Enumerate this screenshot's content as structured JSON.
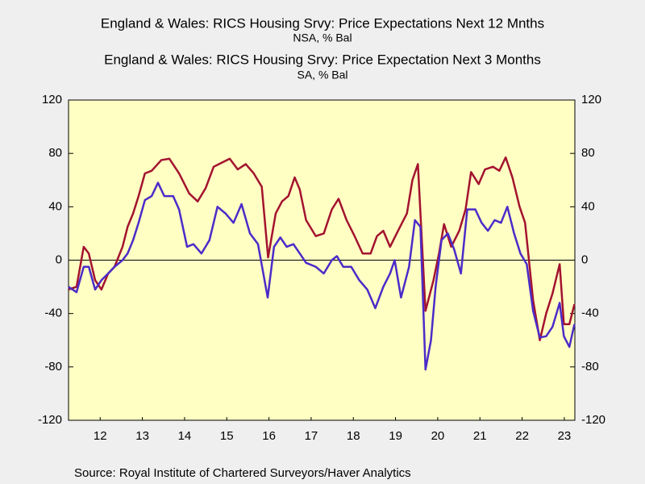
{
  "chart_data": {
    "type": "line",
    "source": "Source:  Royal Institute of Chartered Surveyors/Haver Analytics",
    "series": [
      {
        "name": "England & Wales: RICS Housing Srvy: Price Expectations Next 12 Mnths",
        "unit": "NSA, % Bal",
        "color": "#a3132f",
        "x": [
          2011.75,
          2011.94,
          2012.11,
          2012.23,
          2012.38,
          2012.53,
          2012.69,
          2012.84,
          2013.03,
          2013.15,
          2013.28,
          2013.41,
          2013.56,
          2013.72,
          2013.95,
          2014.14,
          2014.37,
          2014.61,
          2014.81,
          2015.0,
          2015.19,
          2015.38,
          2015.57,
          2015.76,
          2015.95,
          2016.14,
          2016.33,
          2016.48,
          2016.66,
          2016.81,
          2016.96,
          2017.11,
          2017.23,
          2017.38,
          2017.61,
          2017.8,
          2017.99,
          2018.15,
          2018.34,
          2018.53,
          2018.72,
          2018.91,
          2019.06,
          2019.21,
          2019.37,
          2019.56,
          2019.77,
          2019.9,
          2020.03,
          2020.21,
          2020.4,
          2020.53,
          2020.65,
          2020.82,
          2021.01,
          2021.16,
          2021.29,
          2021.47,
          2021.62,
          2021.81,
          2021.96,
          2022.11,
          2022.27,
          2022.44,
          2022.57,
          2022.76,
          2022.92,
          2023.07,
          2023.22,
          2023.39,
          2023.49,
          2023.62,
          2023.74
        ],
        "values": [
          -22,
          -20,
          10,
          5,
          -15,
          -22,
          -10,
          -5,
          10,
          25,
          35,
          48,
          65,
          67,
          75,
          76,
          65,
          50,
          44,
          54,
          70,
          73,
          76,
          68,
          72,
          65,
          55,
          2,
          35,
          44,
          48,
          62,
          53,
          30,
          18,
          20,
          38,
          46,
          30,
          18,
          5,
          5,
          18,
          22,
          10,
          22,
          35,
          60,
          72,
          -38,
          -15,
          5,
          27,
          10,
          22,
          38,
          66,
          57,
          68,
          70,
          67,
          77,
          62,
          40,
          28,
          -30,
          -60,
          -40,
          -25,
          -3,
          -48,
          -48,
          -33
        ]
      },
      {
        "name": "England & Wales: RICS Housing Srvy: Price Expectation  Next 3 Months",
        "unit": "SA, % Bal",
        "color": "#4b2bc9",
        "x": [
          2011.75,
          2011.94,
          2012.11,
          2012.23,
          2012.38,
          2012.53,
          2012.69,
          2012.84,
          2013.03,
          2013.15,
          2013.28,
          2013.41,
          2013.56,
          2013.72,
          2013.87,
          2014.02,
          2014.23,
          2014.37,
          2014.56,
          2014.71,
          2014.9,
          2015.09,
          2015.28,
          2015.47,
          2015.66,
          2015.85,
          2016.05,
          2016.24,
          2016.47,
          2016.62,
          2016.77,
          2016.92,
          2017.08,
          2017.23,
          2017.38,
          2017.61,
          2017.8,
          2017.99,
          2018.11,
          2018.26,
          2018.45,
          2018.64,
          2018.83,
          2019.02,
          2019.21,
          2019.37,
          2019.48,
          2019.63,
          2019.82,
          2019.96,
          2020.09,
          2020.21,
          2020.34,
          2020.45,
          2020.59,
          2020.74,
          2020.89,
          2021.05,
          2021.2,
          2021.39,
          2021.54,
          2021.69,
          2021.85,
          2022.0,
          2022.15,
          2022.31,
          2022.46,
          2022.61,
          2022.76,
          2022.92,
          2023.07,
          2023.22,
          2023.39,
          2023.49,
          2023.62,
          2023.74
        ],
        "values": [
          -20,
          -24,
          -5,
          -5,
          -22,
          -15,
          -10,
          -5,
          0,
          5,
          15,
          28,
          45,
          48,
          58,
          48,
          48,
          38,
          10,
          12,
          5,
          15,
          40,
          35,
          28,
          42,
          20,
          12,
          -28,
          10,
          17,
          10,
          12,
          5,
          -2,
          -5,
          -10,
          0,
          3,
          -5,
          -5,
          -15,
          -22,
          -36,
          -20,
          -10,
          0,
          -28,
          -5,
          30,
          25,
          -82,
          -60,
          -20,
          15,
          20,
          8,
          -10,
          38,
          38,
          28,
          22,
          30,
          28,
          40,
          20,
          5,
          -3,
          -38,
          -58,
          -57,
          -50,
          -32,
          -57,
          -65,
          -48
        ]
      }
    ],
    "xlim": [
      2011.75,
      2023.75
    ],
    "xticks": [
      {
        "value": 2012.5,
        "label": "12"
      },
      {
        "value": 2013.5,
        "label": "13"
      },
      {
        "value": 2014.5,
        "label": "14"
      },
      {
        "value": 2015.5,
        "label": "15"
      },
      {
        "value": 2016.5,
        "label": "16"
      },
      {
        "value": 2017.5,
        "label": "17"
      },
      {
        "value": 2018.5,
        "label": "18"
      },
      {
        "value": 2019.5,
        "label": "19"
      },
      {
        "value": 2020.5,
        "label": "20"
      },
      {
        "value": 2021.5,
        "label": "21"
      },
      {
        "value": 2022.5,
        "label": "22"
      },
      {
        "value": 2023.5,
        "label": "23"
      }
    ],
    "ylim": [
      -120,
      120
    ],
    "yticks": [
      -120,
      -80,
      -40,
      0,
      40,
      80,
      120
    ],
    "y2lim": [
      -120,
      120
    ],
    "y2ticks": [
      -120,
      -80,
      -40,
      0,
      40,
      80,
      120
    ],
    "zero_line": true
  }
}
